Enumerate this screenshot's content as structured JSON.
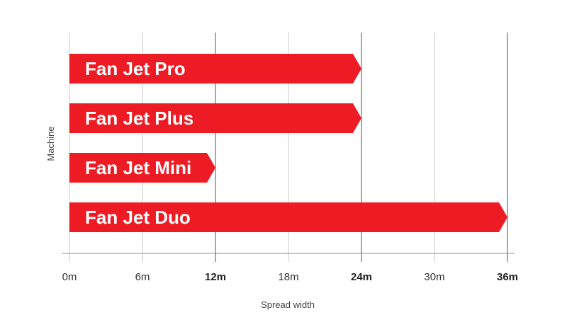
{
  "chart_data": {
    "type": "bar",
    "orientation": "horizontal",
    "categories": [
      "Fan Jet Pro",
      "Fan Jet Plus",
      "Fan Jet Mini",
      "Fan Jet Duo"
    ],
    "values": [
      24,
      24,
      12,
      36
    ],
    "xlabel": "Spread width",
    "ylabel": "Machine",
    "xlim": [
      0,
      36
    ],
    "x_ticks": [
      {
        "value": 0,
        "label": "0m",
        "bold": false
      },
      {
        "value": 6,
        "label": "6m",
        "bold": false
      },
      {
        "value": 12,
        "label": "12m",
        "bold": true
      },
      {
        "value": 18,
        "label": "18m",
        "bold": false
      },
      {
        "value": 24,
        "label": "24m",
        "bold": true
      },
      {
        "value": 30,
        "label": "30m",
        "bold": false
      },
      {
        "value": 36,
        "label": "36m",
        "bold": true
      }
    ],
    "grid": true,
    "bar_color": "#ed1c24",
    "bar_label_color": "#ffffff",
    "grid_color": "#c8c8c8",
    "major_grid_color": "#8c8c8c"
  }
}
